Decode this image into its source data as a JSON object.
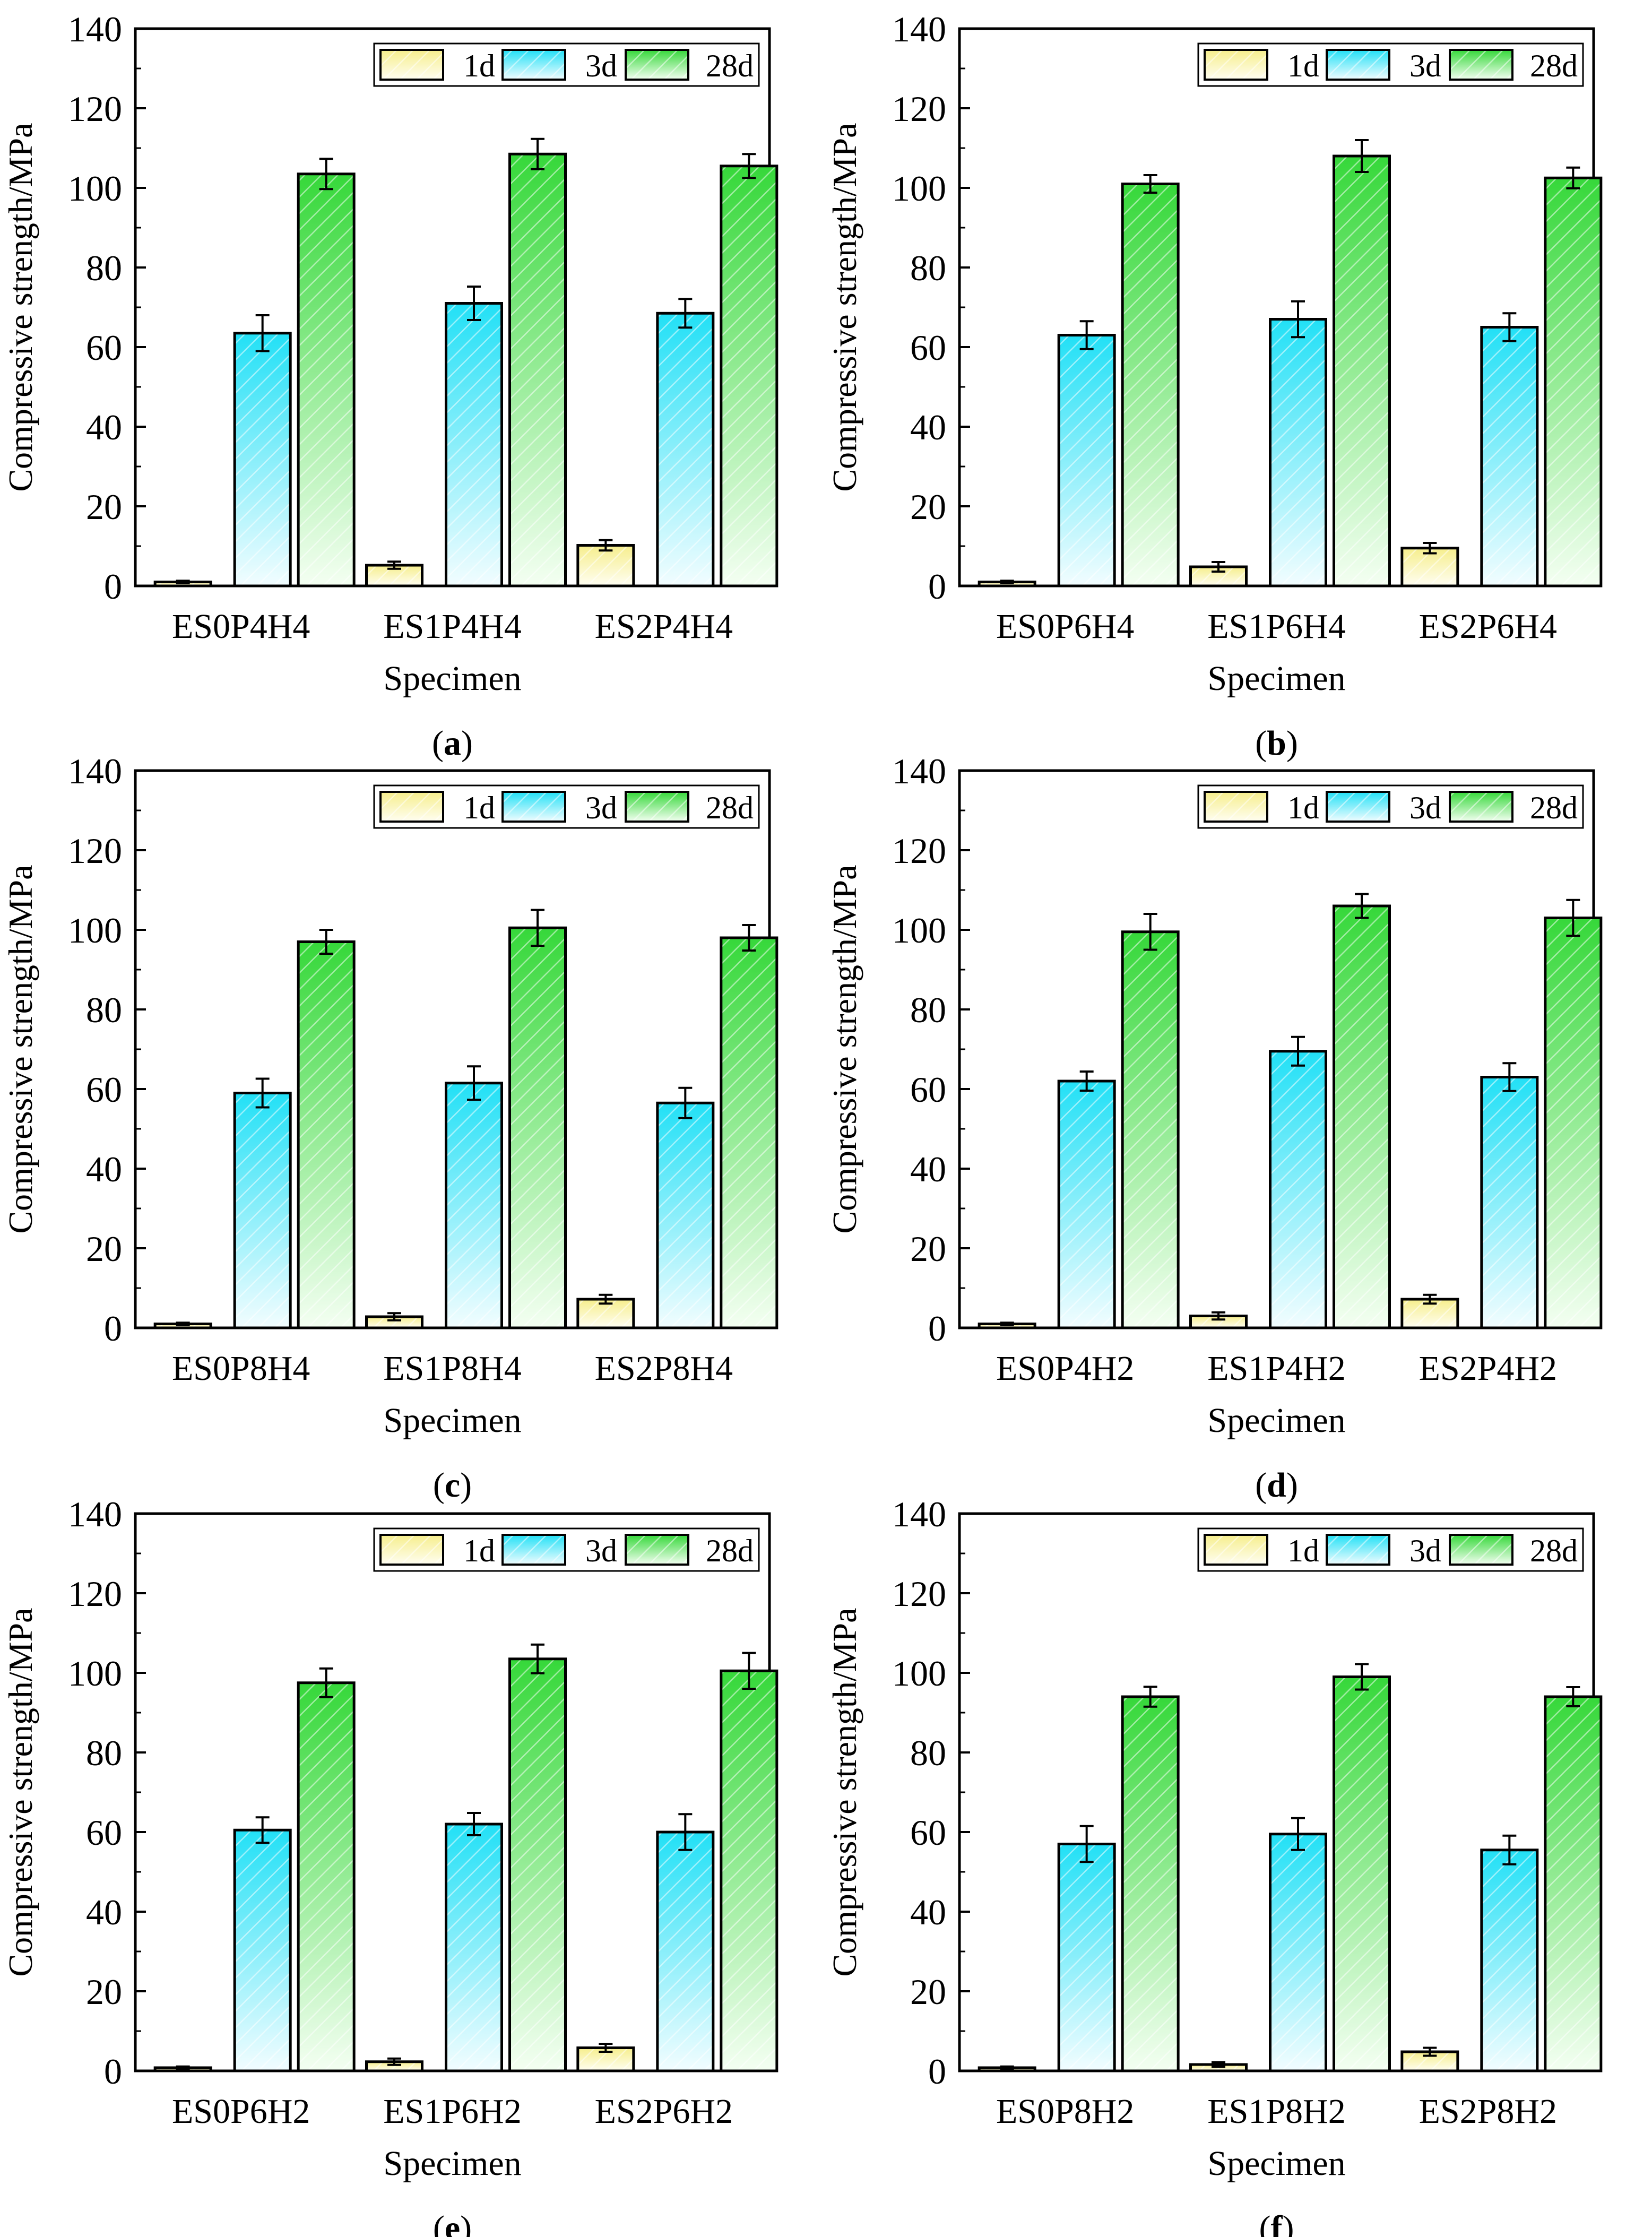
{
  "legend_labels": [
    "1d",
    "3d",
    "28d"
  ],
  "colors": {
    "d1": "#f6ee8c",
    "d3": "#22e0f6",
    "d28": "#36d83a",
    "stroke": "#000000"
  },
  "ylabel": "Compressive strength/MPa",
  "xlabel": "Specimen",
  "chart_data": [
    {
      "type": "bar",
      "panel": "a",
      "categories": [
        "ES0P4H4",
        "ES1P4H4",
        "ES2P4H4"
      ],
      "series": [
        {
          "name": "1d",
          "values": [
            1,
            5.2,
            10.2
          ],
          "errors": [
            0.3,
            0.9,
            1.3
          ]
        },
        {
          "name": "3d",
          "values": [
            63.5,
            71,
            68.5
          ],
          "errors": [
            4.5,
            4.2,
            3.6
          ]
        },
        {
          "name": "28d",
          "values": [
            103.5,
            108.5,
            105.5
          ],
          "errors": [
            3.8,
            3.8,
            3
          ]
        }
      ],
      "xlabel": "Specimen",
      "ylabel": "Compressive strength/MPa",
      "ylim": [
        0,
        140
      ],
      "legend": "top-right"
    },
    {
      "type": "bar",
      "panel": "b",
      "categories": [
        "ES0P6H4",
        "ES1P6H4",
        "ES2P6H4"
      ],
      "series": [
        {
          "name": "1d",
          "values": [
            1,
            4.8,
            9.5
          ],
          "errors": [
            0.3,
            1.2,
            1.3
          ]
        },
        {
          "name": "3d",
          "values": [
            63,
            67,
            65
          ],
          "errors": [
            3.5,
            4.5,
            3.5
          ]
        },
        {
          "name": "28d",
          "values": [
            101,
            108,
            102.5
          ],
          "errors": [
            2.2,
            4,
            2.6
          ]
        }
      ],
      "xlabel": "Specimen",
      "ylabel": "Compressive strength/MPa",
      "ylim": [
        0,
        140
      ],
      "legend": "top-right"
    },
    {
      "type": "bar",
      "panel": "c",
      "categories": [
        "ES0P8H4",
        "ES1P8H4",
        "ES2P8H4"
      ],
      "series": [
        {
          "name": "1d",
          "values": [
            1,
            2.8,
            7.2
          ],
          "errors": [
            0.3,
            0.9,
            1.1
          ]
        },
        {
          "name": "3d",
          "values": [
            59,
            61.5,
            56.5
          ],
          "errors": [
            3.6,
            4.2,
            3.8
          ]
        },
        {
          "name": "28d",
          "values": [
            97,
            100.5,
            98
          ],
          "errors": [
            3,
            4.5,
            3.2
          ]
        }
      ],
      "xlabel": "Specimen",
      "ylabel": "Compressive strength/MPa",
      "ylim": [
        0,
        140
      ],
      "legend": "top-right"
    },
    {
      "type": "bar",
      "panel": "d",
      "categories": [
        "ES0P4H2",
        "ES1P4H2",
        "ES2P4H2"
      ],
      "series": [
        {
          "name": "1d",
          "values": [
            1,
            3,
            7.2
          ],
          "errors": [
            0.3,
            0.9,
            1.1
          ]
        },
        {
          "name": "3d",
          "values": [
            62,
            69.5,
            63
          ],
          "errors": [
            2.4,
            3.6,
            3.5
          ]
        },
        {
          "name": "28d",
          "values": [
            99.5,
            106,
            103
          ],
          "errors": [
            4.5,
            3,
            4.5
          ]
        }
      ],
      "xlabel": "Specimen",
      "ylabel": "Compressive strength/MPa",
      "ylim": [
        0,
        140
      ],
      "legend": "top-right"
    },
    {
      "type": "bar",
      "panel": "e",
      "categories": [
        "ES0P6H2",
        "ES1P6H2",
        "ES2P6H2"
      ],
      "series": [
        {
          "name": "1d",
          "values": [
            0.8,
            2.3,
            5.8
          ],
          "errors": [
            0.3,
            0.8,
            1
          ]
        },
        {
          "name": "3d",
          "values": [
            60.5,
            62,
            60
          ],
          "errors": [
            3.2,
            2.8,
            4.5
          ]
        },
        {
          "name": "28d",
          "values": [
            97.5,
            103.5,
            100.5
          ],
          "errors": [
            3.6,
            3.6,
            4.5
          ]
        }
      ],
      "xlabel": "Specimen",
      "ylabel": "Compressive strength/MPa",
      "ylim": [
        0,
        140
      ],
      "legend": "top-right"
    },
    {
      "type": "bar",
      "panel": "f",
      "categories": [
        "ES0P8H2",
        "ES1P8H2",
        "ES2P8H2"
      ],
      "series": [
        {
          "name": "1d",
          "values": [
            0.8,
            1.6,
            4.8
          ],
          "errors": [
            0.3,
            0.6,
            1
          ]
        },
        {
          "name": "3d",
          "values": [
            57,
            59.5,
            55.5
          ],
          "errors": [
            4.5,
            4,
            3.6
          ]
        },
        {
          "name": "28d",
          "values": [
            94,
            99,
            94
          ],
          "errors": [
            2.5,
            3.2,
            2.4
          ]
        }
      ],
      "xlabel": "Specimen",
      "ylabel": "Compressive strength/MPa",
      "ylim": [
        0,
        140
      ],
      "legend": "top-right"
    }
  ]
}
